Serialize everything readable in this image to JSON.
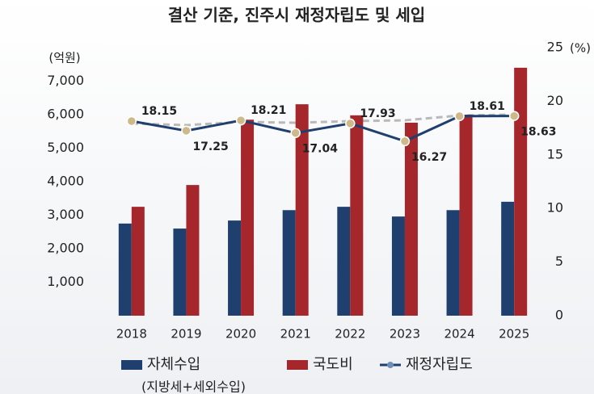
{
  "chart_data": {
    "type": "bar-line",
    "title": "결산 기준, 진주시 재정자립도 및 세입",
    "y_label": "(억원)",
    "y2_label": "(%)",
    "categories": [
      "2018",
      "2019",
      "2020",
      "2021",
      "2022",
      "2023",
      "2024",
      "2025"
    ],
    "series": [
      {
        "name": "자체수입",
        "note": "(지방세+세외수입)",
        "color": "#1f3f6e",
        "type": "bar",
        "values": [
          2750,
          2600,
          2840,
          3150,
          3250,
          2960,
          3150,
          3400
        ]
      },
      {
        "name": "국도비",
        "color": "#a5262b",
        "type": "bar",
        "values": [
          3250,
          3900,
          5850,
          6310,
          5980,
          5760,
          6000,
          7400
        ]
      },
      {
        "name": "재정자립도",
        "color": "#1f3f6e",
        "type": "line",
        "axis": "y2",
        "values": [
          18.15,
          17.25,
          18.21,
          17.04,
          17.93,
          16.27,
          18.61,
          18.63
        ]
      }
    ],
    "ylim": [
      0,
      8000
    ],
    "yticks": [
      {
        "value": 1000,
        "label": "1,000"
      },
      {
        "value": 2000,
        "label": "2,000"
      },
      {
        "value": 3000,
        "label": "3,000"
      },
      {
        "value": 4000,
        "label": "4,000"
      },
      {
        "value": 5000,
        "label": "5,000"
      },
      {
        "value": 6000,
        "label": "6,000"
      },
      {
        "value": 7000,
        "label": "7,000"
      }
    ],
    "y2lim": [
      0,
      25
    ],
    "y2ticks": [
      0,
      5,
      10,
      15,
      20,
      25
    ]
  }
}
